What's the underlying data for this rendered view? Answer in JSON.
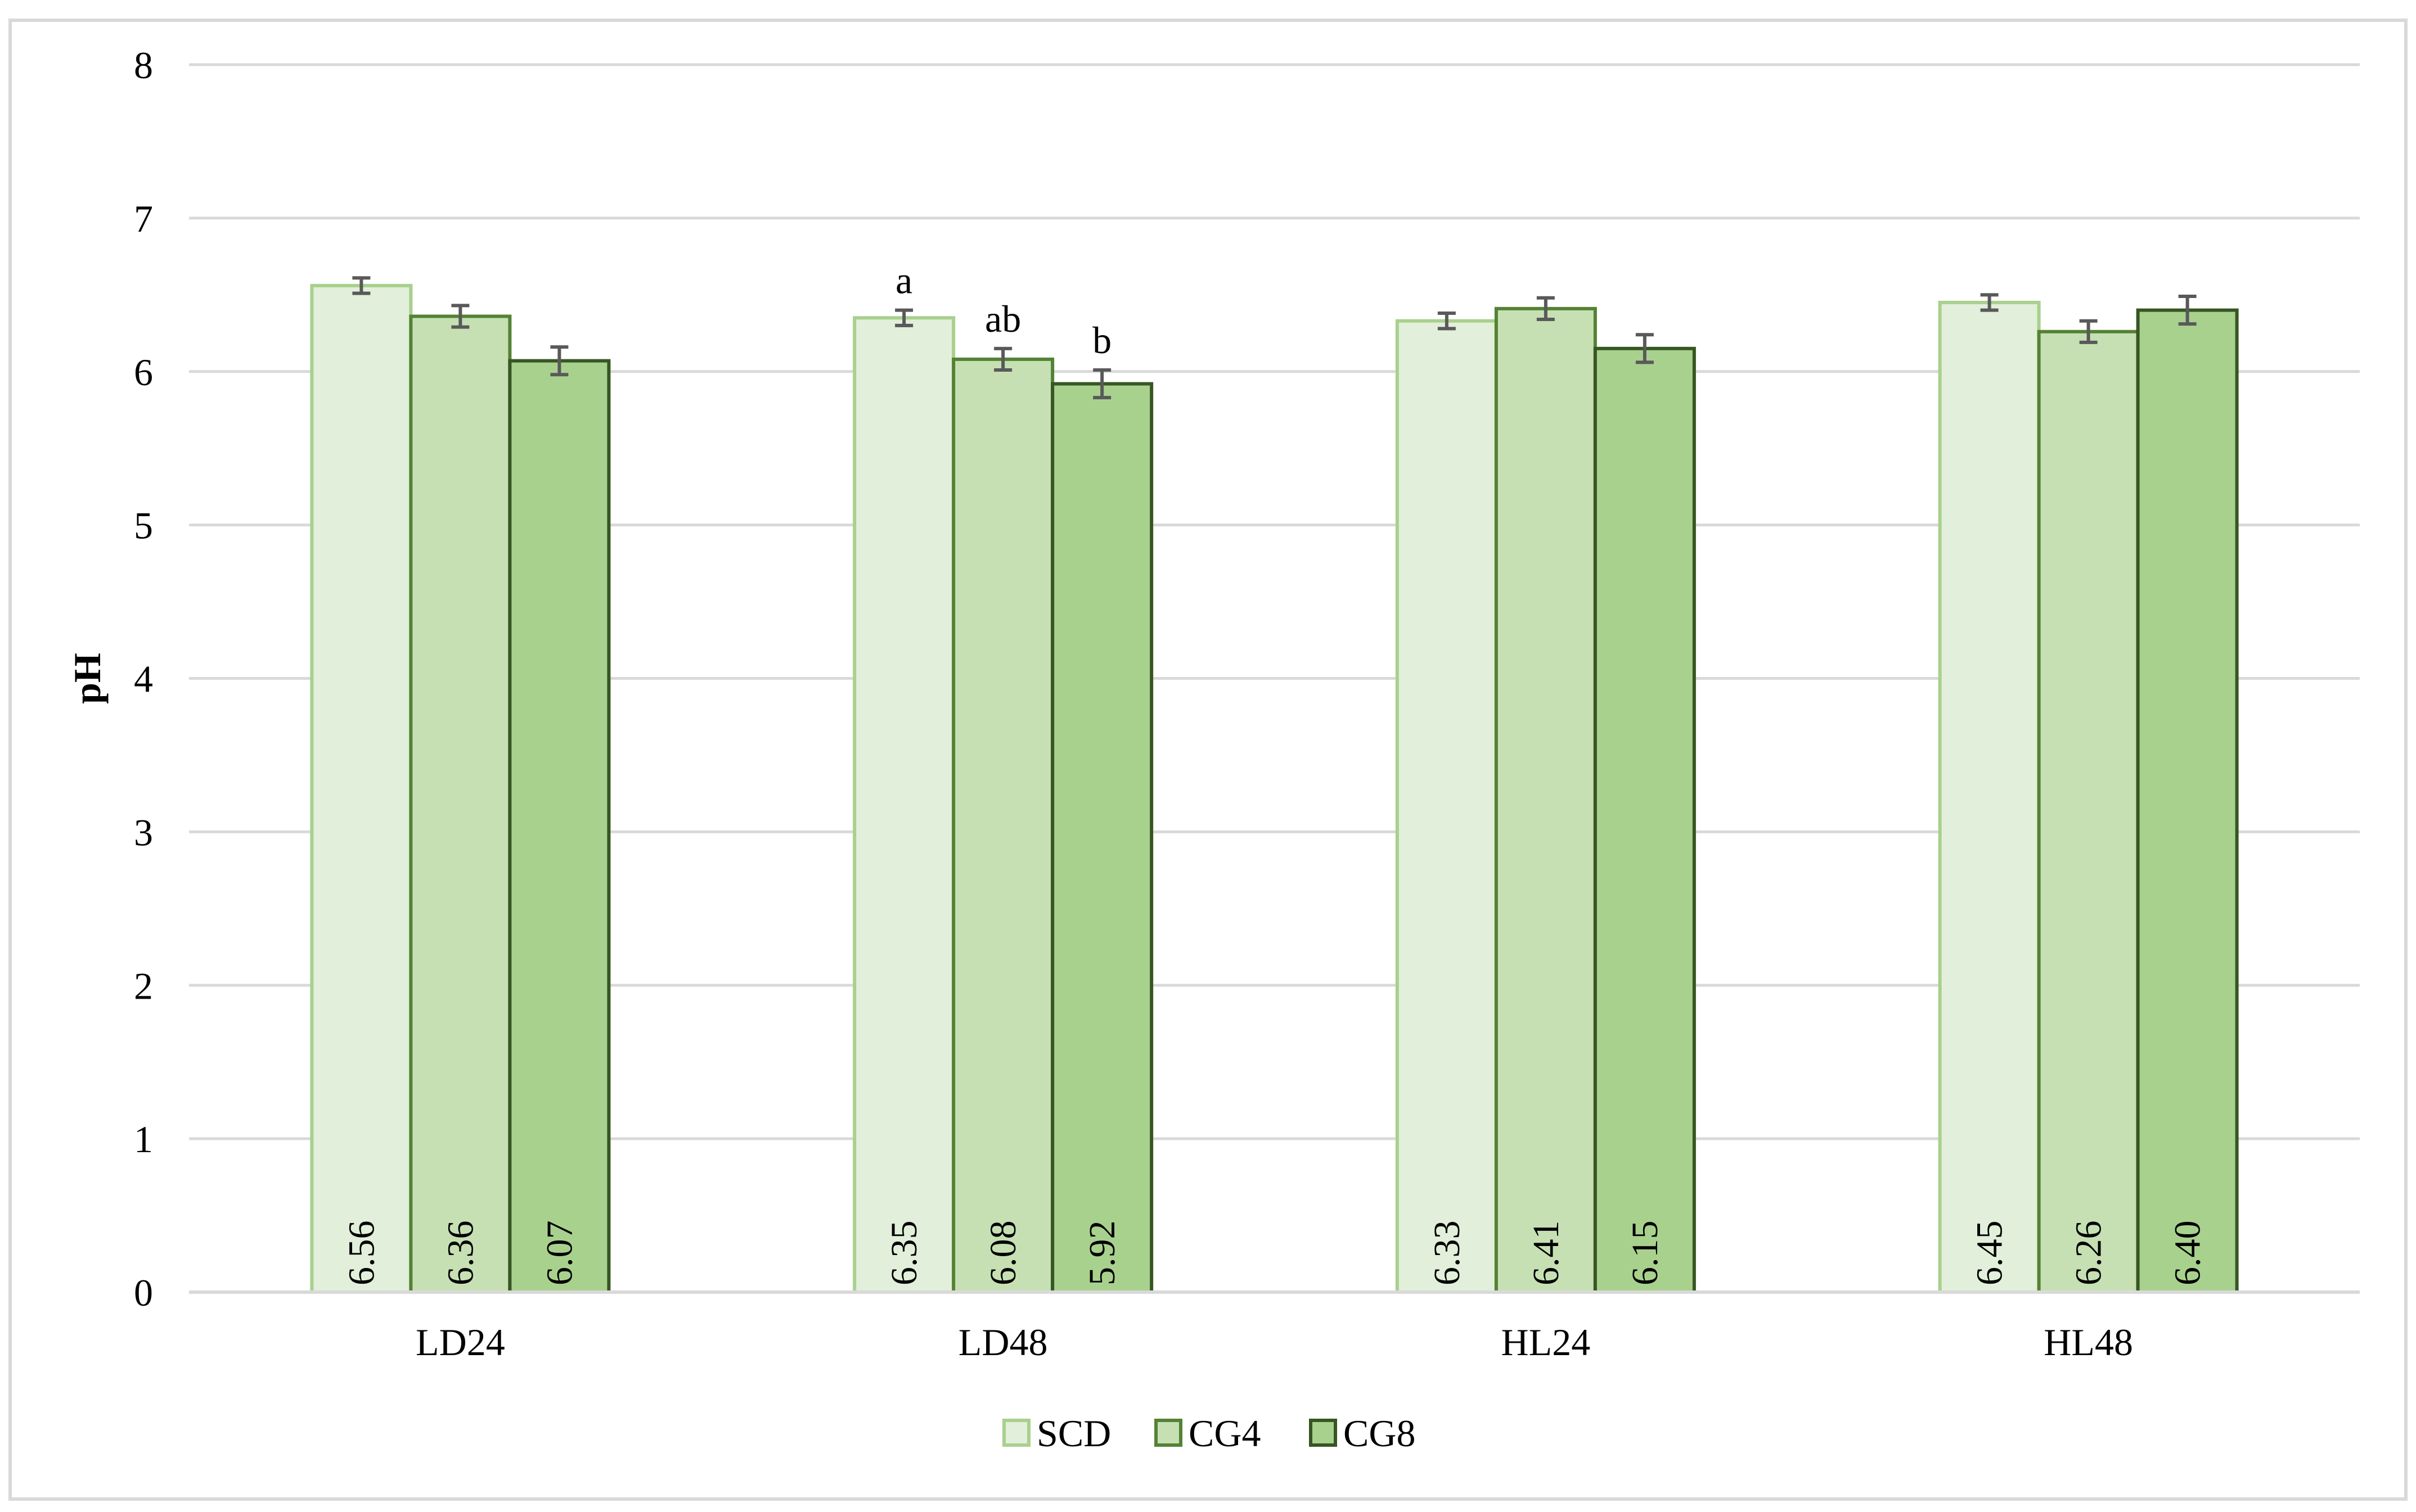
{
  "chart_data": {
    "type": "bar",
    "title": "",
    "xlabel": "",
    "ylabel": "pH",
    "ylim": [
      0,
      8
    ],
    "yticks": [
      "0",
      "1",
      "2",
      "3",
      "4",
      "5",
      "6",
      "7",
      "8"
    ],
    "grid": true,
    "legend_position": "bottom",
    "categories": [
      "LD24",
      "LD48",
      "HL24",
      "HL48"
    ],
    "series": [
      {
        "name": "SCD",
        "values": [
          6.56,
          6.35,
          6.33,
          6.45
        ],
        "labels": [
          "6.56",
          "6.35",
          "6.33",
          "6.45"
        ],
        "error": [
          0.05,
          0.05,
          0.05,
          0.05
        ],
        "fill": "#e2efda",
        "stroke": "#a9d08e"
      },
      {
        "name": "CG4",
        "values": [
          6.36,
          6.08,
          6.41,
          6.26
        ],
        "labels": [
          "6.36",
          "6.08",
          "6.41",
          "6.26"
        ],
        "error": [
          0.07,
          0.07,
          0.07,
          0.07
        ],
        "fill": "#c6e0b4",
        "stroke": "#548235"
      },
      {
        "name": "CG8",
        "values": [
          6.07,
          5.92,
          6.15,
          6.4
        ],
        "labels": [
          "6.07",
          "5.92",
          "6.15",
          "6.40"
        ],
        "error": [
          0.09,
          0.09,
          0.09,
          0.09
        ],
        "fill": "#a9d18e",
        "stroke": "#375623"
      }
    ],
    "annotations": [
      {
        "category": "LD48",
        "series": "SCD",
        "text": "a"
      },
      {
        "category": "LD48",
        "series": "CG4",
        "text": "ab"
      },
      {
        "category": "LD48",
        "series": "CG8",
        "text": "b"
      }
    ],
    "colors": {
      "gridline": "#d9d9d9",
      "border": "#d9d9d9",
      "error_bar": "#595959",
      "text": "#000000"
    }
  }
}
